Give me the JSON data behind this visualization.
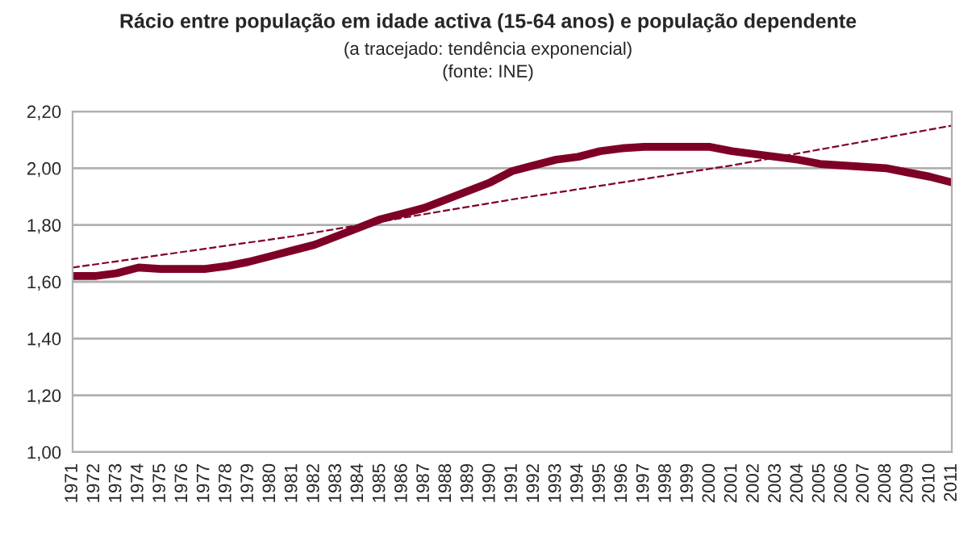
{
  "chart_data": {
    "type": "line",
    "title": "Rácio entre população em idade activa (15-64 anos) e população dependente",
    "annotations": [
      "(a tracejado: tendência exponencial)",
      "(fonte: INE)"
    ],
    "x": [
      1971,
      1972,
      1973,
      1974,
      1975,
      1976,
      1977,
      1978,
      1979,
      1980,
      1981,
      1982,
      1983,
      1984,
      1985,
      1986,
      1987,
      1988,
      1989,
      1990,
      1991,
      1992,
      1993,
      1994,
      1995,
      1996,
      1997,
      1998,
      1999,
      2000,
      2001,
      2002,
      2003,
      2004,
      2005,
      2006,
      2007,
      2008,
      2009,
      2010,
      2011
    ],
    "series": [
      {
        "color": "#7f0026",
        "line_style": "solid",
        "values": [
          1.62,
          1.62,
          1.63,
          1.65,
          1.645,
          1.645,
          1.645,
          1.655,
          1.67,
          1.69,
          1.71,
          1.73,
          1.76,
          1.79,
          1.82,
          1.84,
          1.86,
          1.89,
          1.92,
          1.95,
          1.99,
          2.01,
          2.03,
          2.04,
          2.06,
          2.07,
          2.075,
          2.075,
          2.075,
          2.075,
          2.06,
          2.05,
          2.04,
          2.03,
          2.015,
          2.01,
          2.005,
          2.0,
          1.985,
          1.97,
          1.95
        ]
      },
      {
        "color": "#7f0026",
        "line_style": "dashed",
        "x": [
          1971,
          1981,
          1991,
          2001,
          2011
        ],
        "values": [
          1.65,
          1.76,
          1.89,
          2.01,
          2.15
        ]
      }
    ],
    "xlim": [
      1971,
      2011
    ],
    "xticks": [
      1971,
      1972,
      1973,
      1974,
      1975,
      1976,
      1977,
      1978,
      1979,
      1980,
      1981,
      1982,
      1983,
      1984,
      1985,
      1986,
      1987,
      1988,
      1989,
      1990,
      1991,
      1992,
      1993,
      1994,
      1995,
      1996,
      1997,
      1998,
      1999,
      2000,
      2001,
      2002,
      2003,
      2004,
      2005,
      2006,
      2007,
      2008,
      2009,
      2010,
      2011
    ],
    "ylim": [
      1.0,
      2.2
    ],
    "yticks": [
      {
        "value": 1.0,
        "label": "1,00"
      },
      {
        "value": 1.2,
        "label": "1,20"
      },
      {
        "value": 1.4,
        "label": "1,40"
      },
      {
        "value": 1.6,
        "label": "1,60"
      },
      {
        "value": 1.8,
        "label": "1,80"
      },
      {
        "value": 2.0,
        "label": "2,00"
      },
      {
        "value": 2.2,
        "label": "2,20"
      }
    ],
    "grid": "y",
    "legend": false
  }
}
